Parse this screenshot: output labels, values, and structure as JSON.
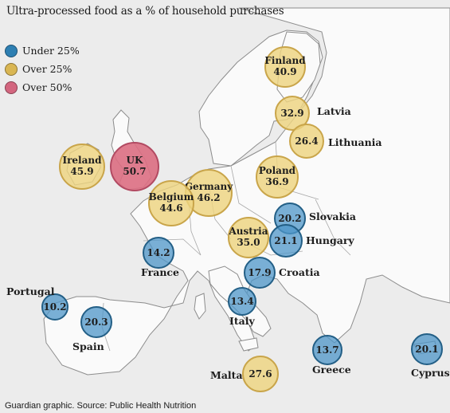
{
  "title": "Ultra-processed food as a % of household purchases",
  "legend": [
    {
      "label": "Under 25%",
      "color": "#2e7fb2"
    },
    {
      "label": "Over 25%",
      "color": "#d9b653"
    },
    {
      "label": "Over 50%",
      "color": "#d3667f"
    }
  ],
  "source": "Guardian graphic. Source: Public Health Nutrition",
  "countries": [
    {
      "name": "Finland",
      "value": "40.9",
      "category": "over25"
    },
    {
      "name": "Latvia",
      "value": "32.9",
      "category": "over25"
    },
    {
      "name": "Lithuania",
      "value": "26.4",
      "category": "over25"
    },
    {
      "name": "Ireland",
      "value": "45.9",
      "category": "over25"
    },
    {
      "name": "UK",
      "value": "50.7",
      "category": "over50"
    },
    {
      "name": "Poland",
      "value": "36.9",
      "category": "over25"
    },
    {
      "name": "Germany",
      "value": "46.2",
      "category": "over25"
    },
    {
      "name": "Belgium",
      "value": "44.6",
      "category": "over25"
    },
    {
      "name": "Slovakia",
      "value": "20.2",
      "category": "under25"
    },
    {
      "name": "Austria",
      "value": "35.0",
      "category": "over25"
    },
    {
      "name": "Hungary",
      "value": "21.1",
      "category": "under25"
    },
    {
      "name": "France",
      "value": "14.2",
      "category": "under25"
    },
    {
      "name": "Croatia",
      "value": "17.9",
      "category": "under25"
    },
    {
      "name": "Portugal",
      "value": "10.2",
      "category": "under25"
    },
    {
      "name": "Italy",
      "value": "13.4",
      "category": "under25"
    },
    {
      "name": "Spain",
      "value": "20.3",
      "category": "under25"
    },
    {
      "name": "Greece",
      "value": "13.7",
      "category": "under25"
    },
    {
      "name": "Cyprus",
      "value": "20.1",
      "category": "under25"
    },
    {
      "name": "Malta",
      "value": "27.6",
      "category": "over25"
    }
  ]
}
